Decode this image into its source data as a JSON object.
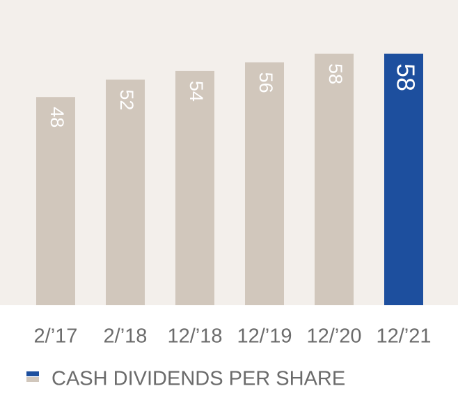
{
  "chart_data": {
    "type": "bar",
    "categories": [
      "2/’17",
      "2/’18",
      "12/’18",
      "12/’19",
      "12/’20",
      "12/’21"
    ],
    "values": [
      48,
      52,
      54,
      56,
      58,
      58
    ],
    "colors": [
      "#d1c7bc",
      "#d1c7bc",
      "#d1c7bc",
      "#d1c7bc",
      "#d1c7bc",
      "#1d4f9e"
    ],
    "legend": "CASH DIVIDENDS PER SHARE"
  }
}
